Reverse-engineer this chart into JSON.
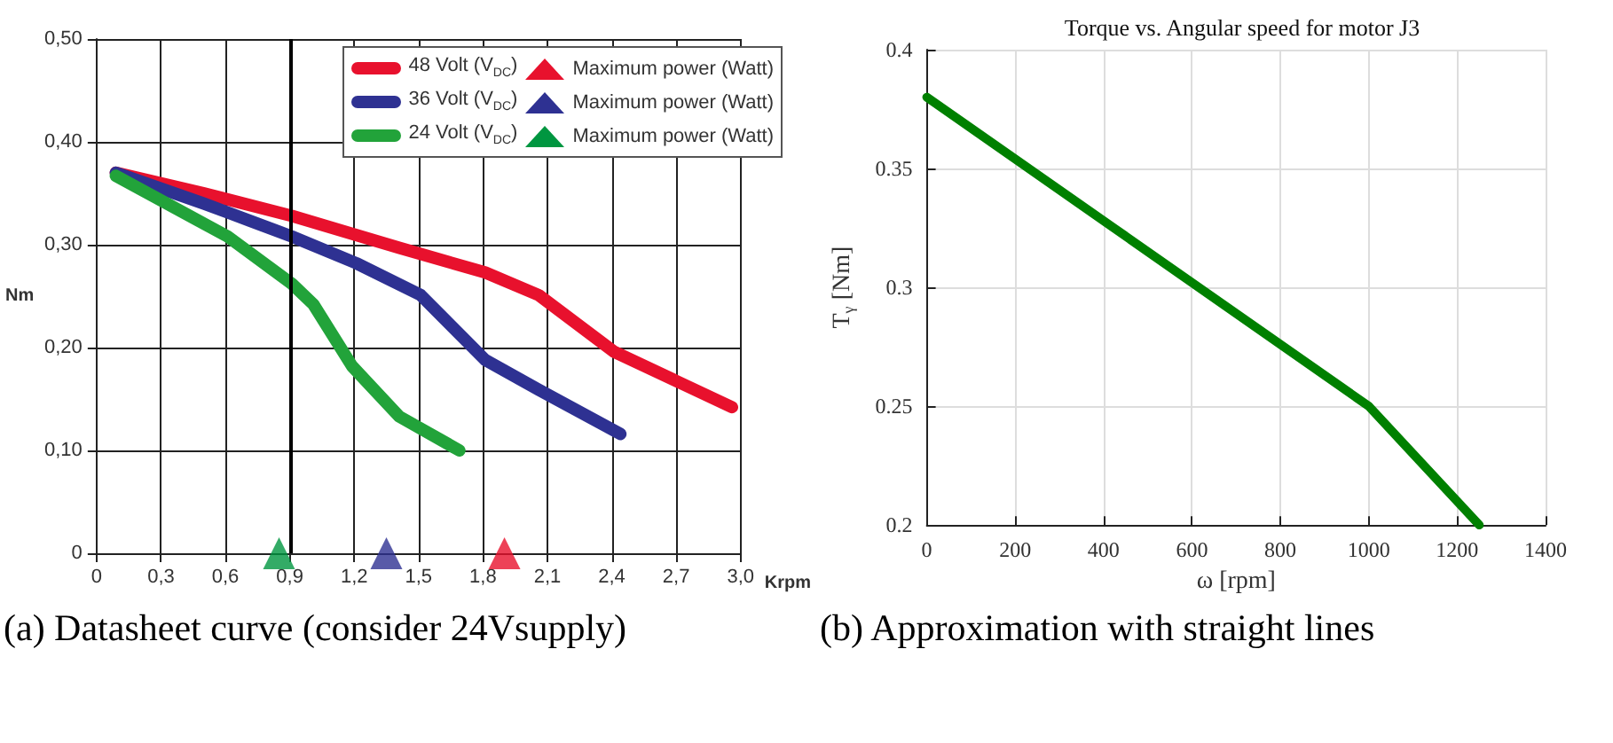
{
  "chart_data": [
    {
      "type": "line",
      "xlabel": "Krpm",
      "ylabel": "Nm",
      "annotations": [
        "(a) Datasheet curve (consider 24Vsupply)"
      ],
      "xlim": [
        0,
        3.0
      ],
      "xticks": [
        {
          "value": 0,
          "label": "0"
        },
        {
          "value": 0.3,
          "label": "0,3"
        },
        {
          "value": 0.6,
          "label": "0,6"
        },
        {
          "value": 0.9,
          "label": "0,9"
        },
        {
          "value": 1.2,
          "label": "1,2"
        },
        {
          "value": 1.5,
          "label": "1,5"
        },
        {
          "value": 1.8,
          "label": "1,8"
        },
        {
          "value": 2.1,
          "label": "2,1"
        },
        {
          "value": 2.4,
          "label": "2,4"
        },
        {
          "value": 2.7,
          "label": "2,7"
        },
        {
          "value": 3.0,
          "label": "3,0"
        }
      ],
      "ylim": [
        0,
        0.5
      ],
      "yticks": [
        {
          "value": 0,
          "label": "0"
        },
        {
          "value": 0.1,
          "label": "0,10"
        },
        {
          "value": 0.2,
          "label": "0,20"
        },
        {
          "value": 0.3,
          "label": "0,30"
        },
        {
          "value": 0.4,
          "label": "0,40"
        },
        {
          "value": 0.5,
          "label": "0,50"
        }
      ],
      "grid": true,
      "legend": "top right",
      "line_style": "solid",
      "marker": "none",
      "ref_lines": [
        {
          "axis": "x",
          "value": 0.9,
          "color": "#000000"
        }
      ],
      "series": [
        {
          "name": "48 Volt (V$_{DC}$)",
          "color": "#e8112d",
          "x": [
            0.09,
            0.5,
            0.91,
            1.41,
            1.81,
            2.06,
            2.41,
            2.96
          ],
          "values": [
            0.37,
            0.35,
            0.328,
            0.297,
            0.273,
            0.251,
            0.196,
            0.142
          ]
        },
        {
          "name": "Maximum power (Watt)",
          "type": "scatter",
          "marker": "triangle",
          "color": "#e8112d",
          "x": [
            1.9
          ],
          "values": [
            0
          ]
        },
        {
          "name": "36 Volt (V$_{DC}$)",
          "color": "#2e3192",
          "x": [
            0.09,
            0.5,
            0.91,
            1.21,
            1.51,
            1.81,
            2.06,
            2.44
          ],
          "values": [
            0.37,
            0.34,
            0.308,
            0.282,
            0.251,
            0.188,
            0.159,
            0.116
          ]
        },
        {
          "name": "Maximum power (Watt)",
          "type": "scatter",
          "marker": "triangle",
          "color": "#2e3192",
          "x": [
            1.35
          ],
          "values": [
            0
          ]
        },
        {
          "name": "24 Volt (V$_{DC}$)",
          "color": "#22a33a",
          "x": [
            0.09,
            0.61,
            0.91,
            1.01,
            1.19,
            1.41,
            1.69
          ],
          "values": [
            0.367,
            0.308,
            0.262,
            0.242,
            0.182,
            0.133,
            0.1
          ]
        },
        {
          "name": "Maximum power (Watt)",
          "type": "scatter",
          "marker": "triangle",
          "color": "#009640",
          "x": [
            0.85
          ],
          "values": [
            0
          ]
        }
      ]
    },
    {
      "type": "line",
      "title": "Torque vs. Angular speed for motor J3",
      "xlabel": "ω [rpm]",
      "ylabel": "T$_{γ}$ [Nm]",
      "annotations": [
        "(b) Approximation with straight lines"
      ],
      "xlim": [
        0,
        1400
      ],
      "xticks": [
        0,
        200,
        400,
        600,
        800,
        1000,
        1200,
        1400
      ],
      "ylim": [
        0.2,
        0.4
      ],
      "yticks": [
        0.2,
        0.25,
        0.3,
        0.35,
        0.4
      ],
      "grid": true,
      "line_style": "solid",
      "marker": "none",
      "series": [
        {
          "color": "#008000",
          "x": [
            0,
            1000,
            1250
          ],
          "values": [
            0.38,
            0.25,
            0.2
          ]
        }
      ]
    }
  ]
}
